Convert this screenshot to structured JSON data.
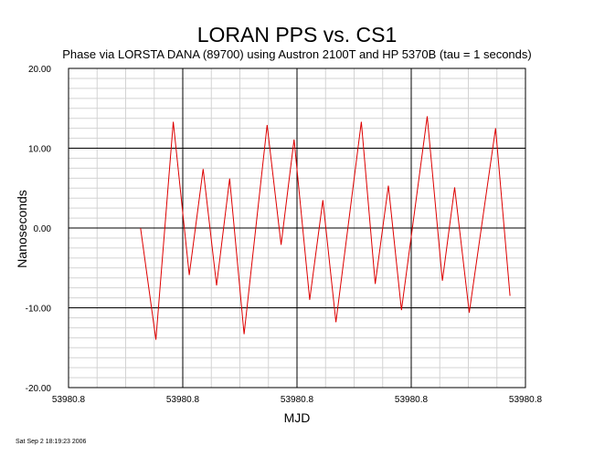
{
  "chart_data": {
    "type": "line",
    "title": "LORAN PPS vs. CS1",
    "subtitle": "Phase via LORSTA DANA (89700) using Austron 2100T and HP 5370B (tau = 1 seconds)",
    "xlabel": "MJD",
    "ylabel": "Nanoseconds",
    "ylim": [
      -20,
      20
    ],
    "y_ticks": [
      "20.00",
      "10.00",
      "0.00",
      "-10.00",
      "-20.00"
    ],
    "x_ticks": [
      "53980.8",
      "53980.8",
      "53980.8",
      "53980.8",
      "53980.8"
    ],
    "x_tick_note": "x tick labels are rounded by the chart; evenly spaced",
    "grid": true,
    "timestamp": "Sat Sep  2 18:19:23 2006",
    "series": [
      {
        "color": "#dd0000",
        "points": [
          {
            "x": 0.63,
            "y": 0.0
          },
          {
            "x": 0.765,
            "y": -14.0
          },
          {
            "x": 0.917,
            "y": 13.3
          },
          {
            "x": 1.057,
            "y": -5.9
          },
          {
            "x": 1.178,
            "y": 7.4
          },
          {
            "x": 1.296,
            "y": -7.2
          },
          {
            "x": 1.41,
            "y": 6.2
          },
          {
            "x": 1.537,
            "y": -13.3
          },
          {
            "x": 1.738,
            "y": 12.9
          },
          {
            "x": 1.861,
            "y": -2.1
          },
          {
            "x": 1.974,
            "y": 11.1
          },
          {
            "x": 2.111,
            "y": -9.0
          },
          {
            "x": 2.226,
            "y": 3.5
          },
          {
            "x": 2.341,
            "y": -11.8
          },
          {
            "x": 2.563,
            "y": 13.3
          },
          {
            "x": 2.685,
            "y": -7.0
          },
          {
            "x": 2.8,
            "y": 5.3
          },
          {
            "x": 2.914,
            "y": -10.3
          },
          {
            "x": 3.14,
            "y": 14.0
          },
          {
            "x": 3.273,
            "y": -6.6
          },
          {
            "x": 3.38,
            "y": 5.1
          },
          {
            "x": 3.508,
            "y": -10.6
          },
          {
            "x": 3.738,
            "y": 12.5
          },
          {
            "x": 3.865,
            "y": -8.5
          }
        ]
      }
    ]
  }
}
